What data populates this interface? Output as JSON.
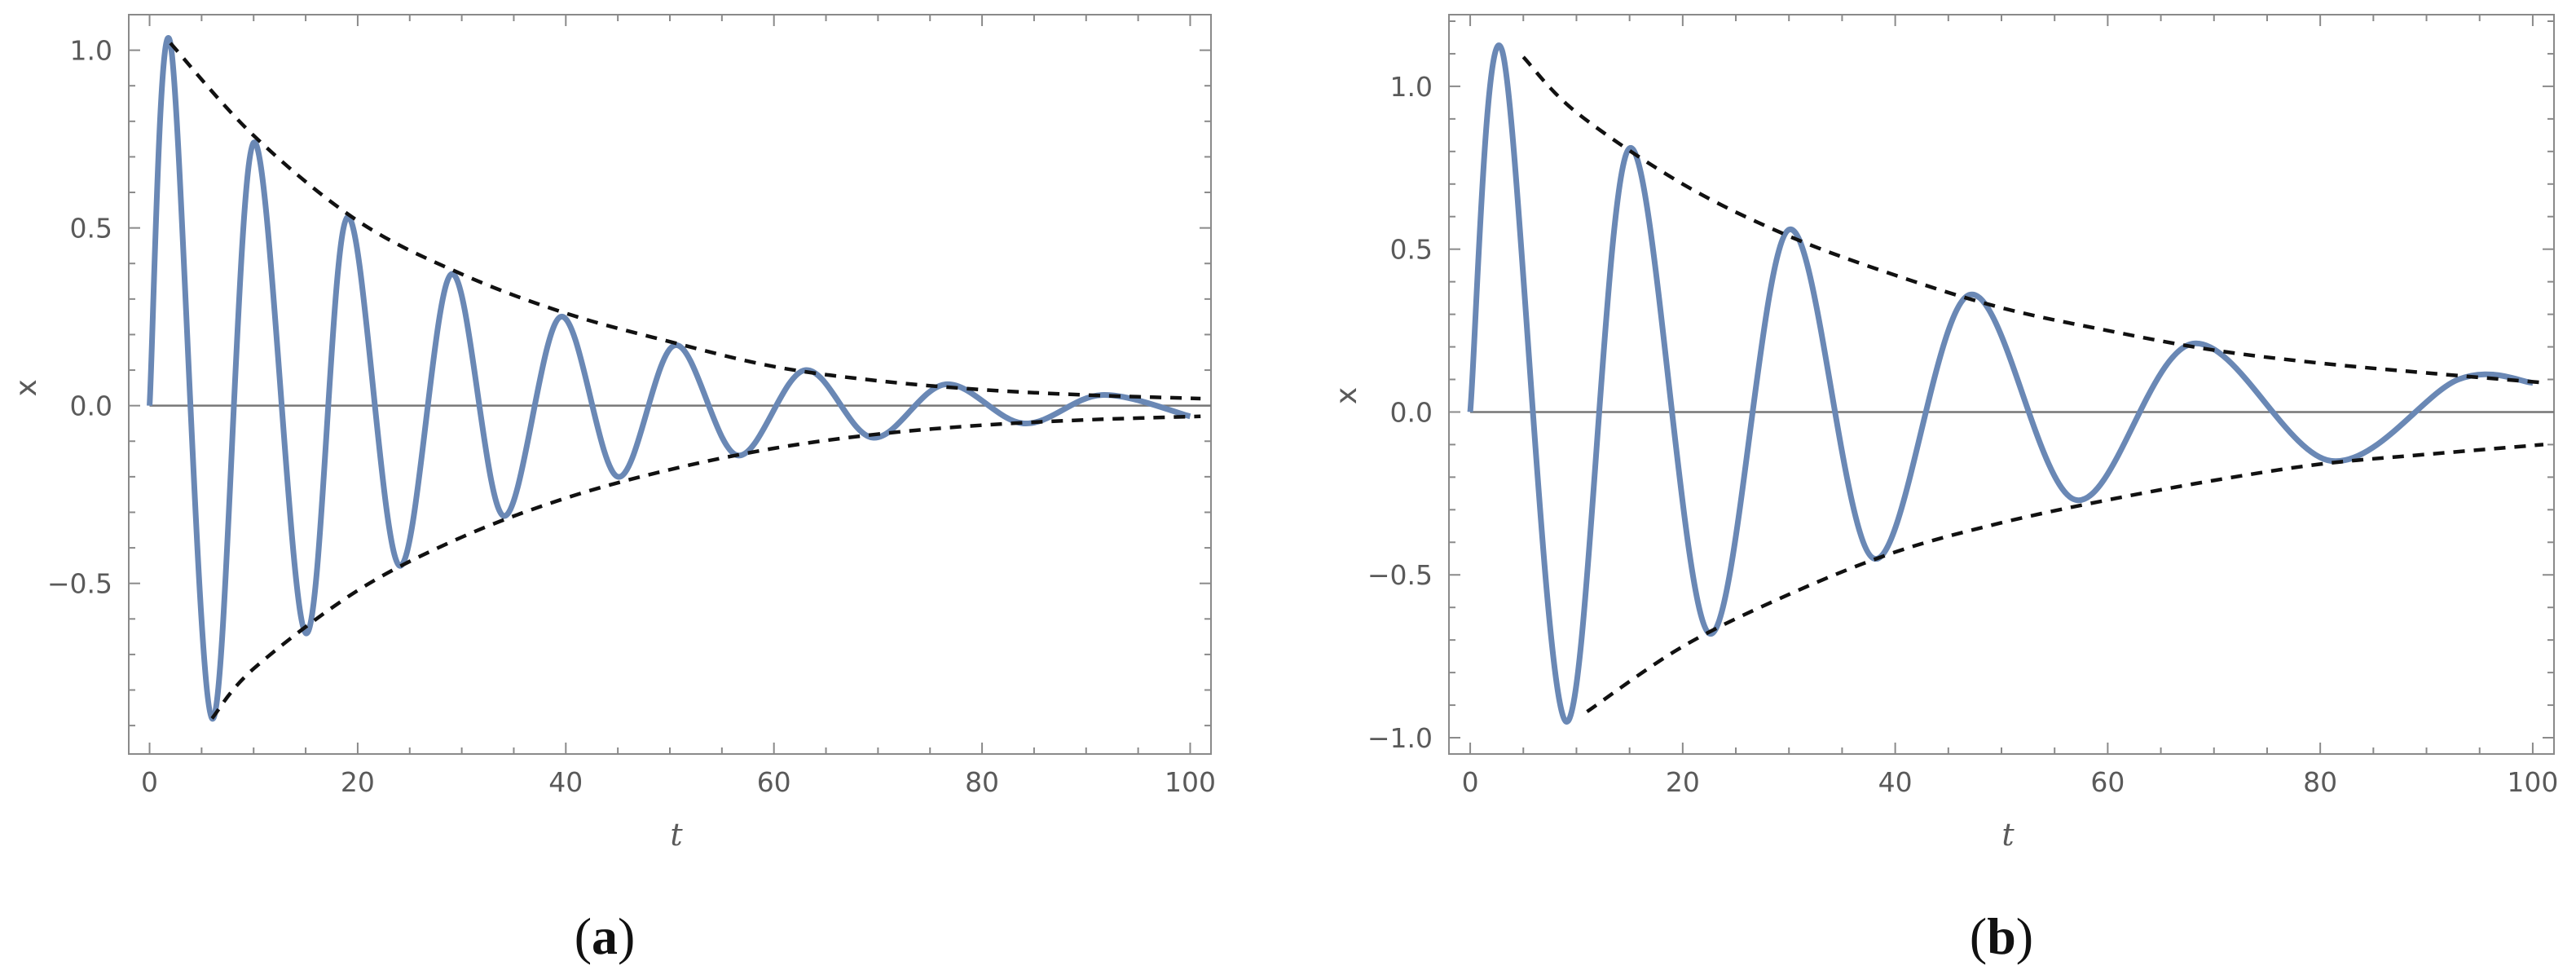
{
  "chart_data": [
    {
      "type": "line",
      "panel_label": "a",
      "xlabel": "t",
      "ylabel": "x",
      "xlim": [
        -2,
        102
      ],
      "ylim": [
        -0.98,
        1.1
      ],
      "xticks": [
        0,
        20,
        40,
        60,
        80,
        100
      ],
      "xtick_labels": [
        "0",
        "20",
        "40",
        "60",
        "80",
        "100"
      ],
      "yticks": [
        -0.5,
        0.0,
        0.5,
        1.0
      ],
      "ytick_labels": [
        "−0.5",
        "0.0",
        "0.5",
        "1.0"
      ],
      "grid": false,
      "legend": "none",
      "series": [
        {
          "role": "oscillation",
          "color": "#6a88b5",
          "x": [
            0,
            2,
            6,
            10,
            15,
            19,
            24,
            29,
            34,
            39.5,
            45,
            50.5,
            56.5,
            63,
            69.5,
            76.5,
            84,
            91.5,
            100
          ],
          "y": [
            0,
            1.02,
            -0.88,
            0.74,
            -0.64,
            0.53,
            -0.45,
            0.37,
            -0.31,
            0.25,
            -0.2,
            0.17,
            -0.14,
            0.1,
            -0.09,
            0.06,
            -0.05,
            0.03,
            -0.03
          ]
        },
        {
          "role": "upper-envelope",
          "color": "#111111",
          "x": [
            2,
            10,
            20,
            30,
            40,
            50,
            60,
            70,
            80,
            90,
            101
          ],
          "y": [
            1.02,
            0.76,
            0.52,
            0.37,
            0.26,
            0.18,
            0.11,
            0.07,
            0.045,
            0.03,
            0.02
          ]
        },
        {
          "role": "lower-envelope",
          "color": "#111111",
          "x": [
            6,
            10,
            20,
            30,
            40,
            50,
            60,
            70,
            80,
            90,
            101
          ],
          "y": [
            -0.88,
            -0.74,
            -0.52,
            -0.37,
            -0.26,
            -0.18,
            -0.12,
            -0.08,
            -0.055,
            -0.04,
            -0.03
          ]
        }
      ]
    },
    {
      "type": "line",
      "panel_label": "b",
      "xlabel": "t",
      "ylabel": "x",
      "xlim": [
        -2,
        102
      ],
      "ylim": [
        -1.05,
        1.22
      ],
      "xticks": [
        0,
        20,
        40,
        60,
        80,
        100
      ],
      "xtick_labels": [
        "0",
        "20",
        "40",
        "60",
        "80",
        "100"
      ],
      "yticks": [
        -1.0,
        -0.5,
        0.0,
        0.5,
        1.0
      ],
      "ytick_labels": [
        "−1.0",
        "−0.5",
        "0.0",
        "0.5",
        "1.0"
      ],
      "grid": false,
      "legend": "none",
      "series": [
        {
          "role": "oscillation",
          "color": "#6a88b5",
          "x": [
            0,
            3,
            9,
            15,
            22.5,
            30,
            38,
            47,
            57,
            68,
            81,
            93,
            100
          ],
          "y": [
            0,
            1.11,
            -0.95,
            0.81,
            -0.68,
            0.56,
            -0.45,
            0.36,
            -0.27,
            0.21,
            -0.15,
            0.1,
            0.09
          ]
        },
        {
          "role": "upper-envelope",
          "color": "#111111",
          "x": [
            5,
            10,
            20,
            30,
            40,
            50,
            60,
            70,
            80,
            90,
            101
          ],
          "y": [
            1.09,
            0.92,
            0.7,
            0.54,
            0.42,
            0.32,
            0.25,
            0.19,
            0.15,
            0.12,
            0.09
          ]
        },
        {
          "role": "lower-envelope",
          "color": "#111111",
          "x": [
            11,
            20,
            30,
            40,
            50,
            60,
            70,
            80,
            90,
            101
          ],
          "y": [
            -0.92,
            -0.72,
            -0.56,
            -0.43,
            -0.34,
            -0.27,
            -0.21,
            -0.16,
            -0.13,
            -0.1
          ]
        }
      ]
    }
  ]
}
